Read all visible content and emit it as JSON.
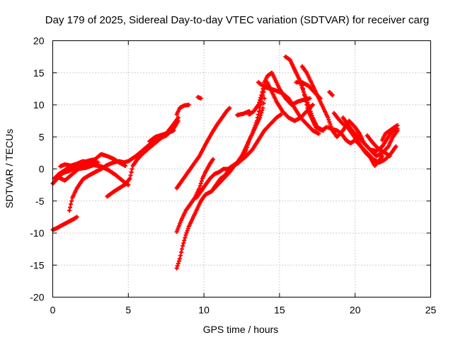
{
  "chart_data": {
    "type": "scatter",
    "title": "Day 179 of 2025, Sidereal Day-to-day VTEC variation (SDTVAR) for receiver carg",
    "xlabel": "GPS time / hours",
    "ylabel": "SDTVAR / TECUs",
    "xlim": [
      0,
      25
    ],
    "ylim": [
      -20,
      20
    ],
    "xticks": [
      0,
      5,
      10,
      15,
      20,
      25
    ],
    "yticks": [
      -20,
      -15,
      -10,
      -5,
      0,
      5,
      10,
      15,
      20
    ],
    "grid": true,
    "marker": "plus",
    "color": "#ff0000",
    "segments": [
      [
        [
          0.0,
          -9.5
        ],
        [
          0.3,
          -9.2
        ],
        [
          0.6,
          -8.8
        ],
        [
          1.0,
          -8.3
        ],
        [
          1.4,
          -7.8
        ],
        [
          1.6,
          -7.5
        ]
      ],
      [
        [
          1.1,
          -6.5
        ],
        [
          1.3,
          -4.5
        ],
        [
          1.6,
          -3.0
        ],
        [
          2.0,
          -1.6
        ],
        [
          2.4,
          -1.0
        ],
        [
          2.8,
          -0.5
        ],
        [
          3.2,
          0.0
        ],
        [
          3.6,
          0.6
        ],
        [
          4.0,
          1.0
        ],
        [
          4.4,
          1.2
        ],
        [
          4.7,
          1.0
        ],
        [
          5.0,
          1.2
        ],
        [
          5.5,
          2.0
        ],
        [
          6.0,
          3.0
        ],
        [
          6.5,
          4.0
        ],
        [
          7.0,
          4.7
        ],
        [
          7.5,
          5.2
        ],
        [
          8.0,
          6.3
        ],
        [
          8.3,
          7.5
        ]
      ],
      [
        [
          0.0,
          -2.3
        ],
        [
          0.3,
          -1.5
        ],
        [
          0.7,
          -0.6
        ],
        [
          1.1,
          -0.3
        ],
        [
          1.5,
          0.2
        ],
        [
          1.9,
          0.5
        ],
        [
          2.3,
          0.7
        ],
        [
          2.7,
          1.0
        ],
        [
          3.0,
          1.0
        ]
      ],
      [
        [
          0.1,
          -1.5
        ],
        [
          0.4,
          -0.8
        ],
        [
          0.8,
          -0.2
        ],
        [
          1.2,
          0.4
        ],
        [
          1.6,
          0.6
        ],
        [
          2.0,
          1.0
        ],
        [
          2.4,
          1.3
        ],
        [
          2.8,
          1.5
        ],
        [
          3.2,
          2.3
        ],
        [
          3.6,
          2.0
        ],
        [
          4.0,
          1.6
        ],
        [
          4.4,
          1.0
        ],
        [
          4.8,
          0.5
        ]
      ],
      [
        [
          0.3,
          -1.2
        ],
        [
          0.8,
          -1.8
        ],
        [
          1.2,
          -1.0
        ],
        [
          1.7,
          0.0
        ],
        [
          2.2,
          0.2
        ],
        [
          2.7,
          0.6
        ],
        [
          3.2,
          0.4
        ],
        [
          3.7,
          -0.2
        ],
        [
          4.2,
          -1.0
        ],
        [
          4.7,
          -2.0
        ],
        [
          5.0,
          -2.5
        ]
      ],
      [
        [
          0.5,
          0.4
        ],
        [
          0.8,
          0.7
        ],
        [
          1.2,
          0.5
        ],
        [
          1.6,
          0.8
        ],
        [
          2.0,
          1.2
        ],
        [
          2.4,
          1.0
        ],
        [
          2.8,
          0.8
        ]
      ],
      [
        [
          3.6,
          -4.3
        ],
        [
          4.0,
          -3.6
        ],
        [
          4.4,
          -3.0
        ],
        [
          4.8,
          -2.4
        ],
        [
          5.1,
          -1.5
        ],
        [
          5.3,
          0.5
        ],
        [
          5.6,
          1.5
        ],
        [
          6.0,
          2.5
        ],
        [
          6.5,
          3.5
        ],
        [
          7.0,
          4.5
        ],
        [
          7.5,
          5.5
        ],
        [
          8.0,
          7.0
        ],
        [
          8.3,
          8.0
        ]
      ],
      [
        [
          6.4,
          4.3
        ],
        [
          6.8,
          5.0
        ],
        [
          7.2,
          5.3
        ],
        [
          7.6,
          5.6
        ],
        [
          8.0,
          6.0
        ]
      ],
      [
        [
          8.2,
          8.5
        ],
        [
          8.4,
          9.5
        ],
        [
          8.7,
          9.9
        ],
        [
          9.0,
          10.0
        ]
      ],
      [
        [
          9.6,
          11.2
        ],
        [
          9.8,
          11.0
        ]
      ],
      [
        [
          8.2,
          -15.5
        ],
        [
          8.4,
          -14.0
        ],
        [
          8.6,
          -12.0
        ],
        [
          8.8,
          -10.3
        ],
        [
          9.0,
          -9.0
        ],
        [
          9.3,
          -7.5
        ],
        [
          9.6,
          -6.0
        ],
        [
          9.8,
          -5.0
        ],
        [
          10.1,
          -4.0
        ],
        [
          10.5,
          -3.5
        ],
        [
          10.9,
          -2.5
        ],
        [
          11.3,
          -1.5
        ],
        [
          11.7,
          -0.5
        ],
        [
          12.0,
          0.5
        ],
        [
          12.4,
          1.2
        ],
        [
          12.8,
          2.0
        ],
        [
          13.2,
          3.0
        ],
        [
          13.6,
          4.5
        ],
        [
          14.0,
          6.0
        ],
        [
          14.4,
          7.0
        ],
        [
          14.8,
          8.0
        ],
        [
          15.1,
          8.5
        ]
      ],
      [
        [
          8.2,
          -9.8
        ],
        [
          8.5,
          -8.0
        ],
        [
          8.8,
          -6.5
        ],
        [
          9.1,
          -5.5
        ],
        [
          9.4,
          -4.5
        ],
        [
          9.7,
          -3.0
        ],
        [
          9.9,
          -1.5
        ],
        [
          10.1,
          -0.5
        ],
        [
          10.4,
          0.8
        ],
        [
          10.6,
          1.5
        ]
      ],
      [
        [
          8.2,
          -3.0
        ],
        [
          8.5,
          -2.0
        ],
        [
          8.8,
          -1.0
        ],
        [
          9.1,
          0.0
        ],
        [
          9.4,
          1.0
        ],
        [
          9.7,
          2.0
        ],
        [
          10.1,
          3.8
        ],
        [
          10.5,
          5.5
        ],
        [
          10.9,
          7.0
        ],
        [
          11.2,
          8.0
        ],
        [
          11.5,
          9.0
        ],
        [
          11.7,
          9.5
        ]
      ],
      [
        [
          9.5,
          -4.5
        ],
        [
          9.8,
          -3.5
        ],
        [
          10.1,
          -2.5
        ],
        [
          10.4,
          -1.5
        ],
        [
          10.7,
          -0.8
        ],
        [
          11.0,
          -0.5
        ],
        [
          11.3,
          0.0
        ],
        [
          11.6,
          0.0
        ],
        [
          11.9,
          0.5
        ],
        [
          12.2,
          1.0
        ],
        [
          12.5,
          2.0
        ],
        [
          12.8,
          3.5
        ],
        [
          13.1,
          5.0
        ],
        [
          13.4,
          6.5
        ],
        [
          13.7,
          8.0
        ],
        [
          13.9,
          9.5
        ],
        [
          14.0,
          11.0
        ]
      ],
      [
        [
          10.5,
          -3.5
        ],
        [
          10.8,
          -2.5
        ],
        [
          11.1,
          -1.5
        ],
        [
          11.4,
          -1.0
        ],
        [
          11.7,
          0.0
        ],
        [
          12.0,
          0.5
        ],
        [
          12.3,
          1.0
        ],
        [
          12.6,
          2.0
        ],
        [
          12.8,
          3.0
        ],
        [
          13.0,
          4.5
        ],
        [
          13.2,
          5.5
        ],
        [
          13.5,
          7.5
        ],
        [
          13.8,
          10.5
        ],
        [
          14.0,
          12.5
        ],
        [
          14.2,
          13.5
        ],
        [
          14.4,
          12.5
        ],
        [
          14.8,
          10.5
        ],
        [
          15.2,
          9.0
        ],
        [
          15.6,
          8.0
        ],
        [
          16.0,
          7.5
        ],
        [
          16.4,
          8.0
        ],
        [
          16.8,
          9.0
        ],
        [
          17.2,
          10.0
        ]
      ],
      [
        [
          13.0,
          8.5
        ],
        [
          13.3,
          9.0
        ],
        [
          13.6,
          10.0
        ],
        [
          13.8,
          11.5
        ],
        [
          14.0,
          13.5
        ],
        [
          14.2,
          14.5
        ],
        [
          14.5,
          15.0
        ],
        [
          14.7,
          14.0
        ],
        [
          15.0,
          12.5
        ],
        [
          15.4,
          11.0
        ],
        [
          15.8,
          10.0
        ],
        [
          16.2,
          10.5
        ],
        [
          16.6,
          10.8
        ],
        [
          17.0,
          11.0
        ]
      ],
      [
        [
          12.2,
          8.4
        ],
        [
          12.6,
          8.6
        ],
        [
          13.0,
          9.0
        ]
      ],
      [
        [
          13.6,
          13.5
        ],
        [
          14.0,
          12.8
        ],
        [
          14.4,
          12.5
        ],
        [
          14.8,
          12.2
        ],
        [
          15.2,
          11.8
        ],
        [
          15.6,
          11.0
        ],
        [
          16.0,
          9.5
        ],
        [
          16.4,
          8.0
        ],
        [
          16.8,
          7.0
        ],
        [
          17.2,
          6.0
        ],
        [
          17.6,
          5.5
        ]
      ],
      [
        [
          15.4,
          17.5
        ],
        [
          15.7,
          17.0
        ],
        [
          15.9,
          16.0
        ],
        [
          16.1,
          15.0
        ],
        [
          16.3,
          14.0
        ],
        [
          16.5,
          13.0
        ],
        [
          16.7,
          11.0
        ],
        [
          16.9,
          9.0
        ],
        [
          17.1,
          8.0
        ],
        [
          17.4,
          6.5
        ],
        [
          17.8,
          6.0
        ],
        [
          18.1,
          6.5
        ]
      ],
      [
        [
          15.8,
          16.5
        ],
        [
          16.0,
          15.5
        ],
        [
          16.3,
          14.0
        ],
        [
          16.6,
          12.0
        ],
        [
          16.9,
          10.0
        ],
        [
          17.2,
          8.0
        ],
        [
          17.5,
          6.5
        ],
        [
          17.9,
          6.0
        ]
      ],
      [
        [
          16.1,
          13.5
        ],
        [
          16.5,
          13.5
        ],
        [
          16.9,
          13.0
        ],
        [
          17.3,
          12.0
        ],
        [
          17.7,
          11.0
        ]
      ],
      [
        [
          16.5,
          16.0
        ],
        [
          16.8,
          15.0
        ],
        [
          17.0,
          14.0
        ],
        [
          17.3,
          12.5
        ],
        [
          17.6,
          11.0
        ],
        [
          17.9,
          9.5
        ],
        [
          18.2,
          8.0
        ],
        [
          18.5,
          6.0
        ],
        [
          18.8,
          5.0
        ],
        [
          19.2,
          6.0
        ],
        [
          19.6,
          7.5
        ],
        [
          20.0,
          6.5
        ],
        [
          20.3,
          5.5
        ],
        [
          20.6,
          4.0
        ],
        [
          21.0,
          3.0
        ],
        [
          21.4,
          2.0
        ],
        [
          21.8,
          2.5
        ],
        [
          22.2,
          3.5
        ],
        [
          22.5,
          5.0
        ],
        [
          22.8,
          6.0
        ]
      ],
      [
        [
          18.3,
          12.0
        ],
        [
          18.5,
          11.5
        ]
      ],
      [
        [
          18.2,
          6.5
        ],
        [
          18.5,
          6.2
        ],
        [
          18.8,
          6.0
        ],
        [
          19.1,
          5.5
        ],
        [
          19.4,
          4.5
        ],
        [
          19.7,
          4.0
        ],
        [
          20.0,
          4.5
        ],
        [
          20.4,
          3.5
        ],
        [
          20.8,
          2.5
        ],
        [
          21.2,
          1.5
        ],
        [
          21.6,
          1.0
        ],
        [
          22.0,
          1.5
        ],
        [
          22.4,
          2.5
        ],
        [
          22.7,
          3.5
        ]
      ],
      [
        [
          18.6,
          8.7
        ],
        [
          18.9,
          7.8
        ],
        [
          19.2,
          7.0
        ],
        [
          19.5,
          6.5
        ],
        [
          19.8,
          5.5
        ],
        [
          20.1,
          4.5
        ],
        [
          20.4,
          3.5
        ],
        [
          20.7,
          2.5
        ],
        [
          21.0,
          1.8
        ],
        [
          21.3,
          0.5
        ],
        [
          21.5,
          1.0
        ],
        [
          21.8,
          2.0
        ]
      ],
      [
        [
          19.2,
          8.0
        ],
        [
          19.5,
          7.0
        ],
        [
          19.8,
          6.0
        ],
        [
          20.2,
          5.0
        ],
        [
          20.6,
          4.0
        ],
        [
          21.0,
          3.0
        ],
        [
          21.4,
          2.8
        ],
        [
          21.8,
          3.5
        ],
        [
          22.2,
          5.0
        ],
        [
          22.5,
          6.0
        ],
        [
          22.8,
          6.3
        ]
      ],
      [
        [
          20.8,
          5.2
        ],
        [
          21.2,
          4.0
        ],
        [
          21.6,
          3.0
        ],
        [
          22.0,
          2.5
        ],
        [
          22.3,
          2.0
        ]
      ],
      [
        [
          21.8,
          4.5
        ],
        [
          22.0,
          5.5
        ],
        [
          22.3,
          6.0
        ],
        [
          22.6,
          6.5
        ],
        [
          22.8,
          6.8
        ]
      ]
    ]
  }
}
